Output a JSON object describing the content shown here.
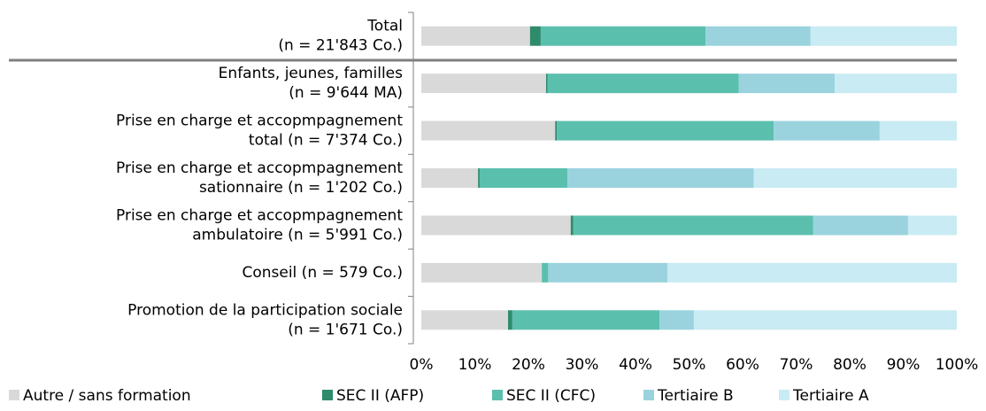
{
  "chart_data": {
    "type": "stacked-barh",
    "categories": [
      "Total\n(n = 21'843 Co.)",
      "Enfants, jeunes, familles\n(n = 9'644 MA)",
      "Prise en charge et accopmpagnement\ntotal (n = 7'374 Co.)",
      "Prise en charge et accopmpagnement\nsationnaire (n = 1'202 Co.)",
      "Prise en charge et accopmpagnement\nambulatoire (n = 5'991 Co.)",
      "Conseil (n = 579 Co.)",
      "Promotion de la participation sociale\n(n = 1'671 Co.)"
    ],
    "series": [
      {
        "name": "Autre / sans formation",
        "color": "#d9d9d9",
        "values": [
          20.3,
          23.3,
          25.0,
          10.6,
          27.9,
          22.5,
          16.2
        ]
      },
      {
        "name": "SEC II (AFP)",
        "color": "#2e8b6b",
        "values": [
          2.0,
          0.3,
          0.3,
          0.3,
          0.5,
          0,
          0.8
        ]
      },
      {
        "name": "SEC II (CFC)",
        "color": "#5bbfae",
        "values": [
          30.8,
          35.7,
          40.5,
          16.4,
          44.8,
          1.2,
          27.5
        ]
      },
      {
        "name": "Tertiaire B",
        "color": "#9ad3de",
        "values": [
          19.6,
          17.9,
          19.8,
          34.8,
          17.7,
          22.3,
          6.4
        ]
      },
      {
        "name": "Tertiaire A",
        "color": "#c9ebf3",
        "values": [
          27.3,
          22.8,
          14.4,
          37.9,
          9.1,
          54.0,
          49.1
        ]
      }
    ],
    "xlim": [
      0,
      100
    ],
    "xticks": [
      {
        "value": 0,
        "label": "0%"
      },
      {
        "value": 10,
        "label": "10%"
      },
      {
        "value": 20,
        "label": "20%"
      },
      {
        "value": 30,
        "label": "30%"
      },
      {
        "value": 40,
        "label": "40%"
      },
      {
        "value": 50,
        "label": "50%"
      },
      {
        "value": 60,
        "label": "60%"
      },
      {
        "value": 70,
        "label": "70%"
      },
      {
        "value": 80,
        "label": "80%"
      },
      {
        "value": 90,
        "label": "90%"
      },
      {
        "value": 100,
        "label": "100%"
      }
    ],
    "legend": "bottom"
  }
}
